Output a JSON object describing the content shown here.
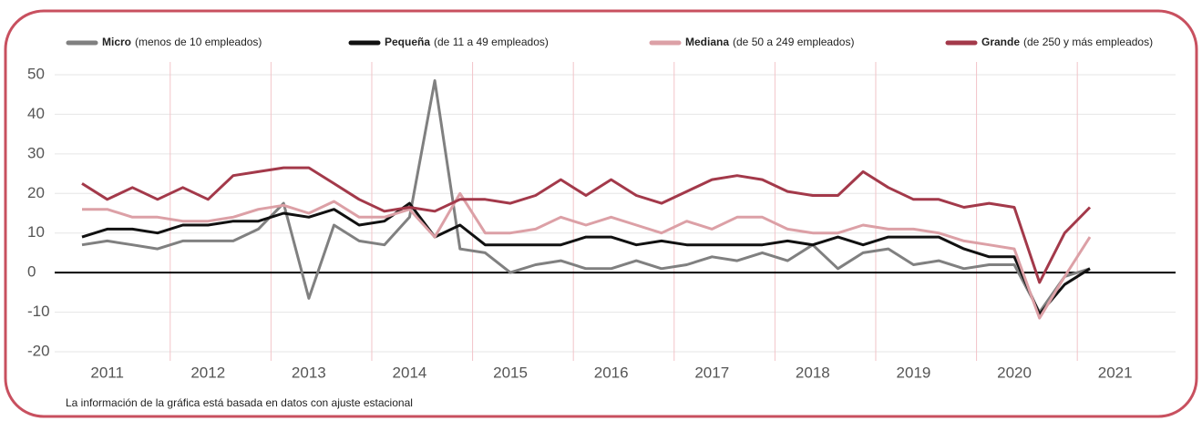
{
  "chart_data": {
    "type": "line",
    "categories": [
      "2011",
      null,
      null,
      null,
      "2012",
      null,
      null,
      null,
      "2013",
      null,
      null,
      null,
      "2014",
      null,
      null,
      null,
      "2015",
      null,
      null,
      null,
      "2016",
      null,
      null,
      null,
      "2017",
      null,
      null,
      null,
      "2018",
      null,
      null,
      null,
      "2019",
      null,
      null,
      null,
      "2020",
      null,
      null,
      null,
      "2021"
    ],
    "series": [
      {
        "name": "Micro",
        "description": "(menos de 10 empleados)",
        "color": "#808080",
        "values": [
          7,
          8,
          7,
          6,
          8,
          8,
          8,
          11,
          17.5,
          -6.5,
          12,
          8,
          7,
          14,
          48.5,
          6,
          5,
          0,
          2,
          3,
          1,
          1,
          3,
          1,
          2,
          4,
          3,
          5,
          3,
          7,
          1,
          5,
          6,
          2,
          3,
          1,
          2,
          2,
          -10,
          -1,
          1
        ]
      },
      {
        "name": "Pequeña",
        "description": "(de 11 a 49 empleados)",
        "color": "#111111",
        "values": [
          9,
          11,
          11,
          10,
          12,
          12,
          13,
          13,
          15,
          14,
          16,
          12,
          13,
          17.5,
          9,
          12,
          7,
          7,
          7,
          7,
          9,
          9,
          7,
          8,
          7,
          7,
          7,
          7,
          8,
          7,
          9,
          7,
          9,
          9,
          9,
          6,
          4,
          4,
          -10.5,
          -3,
          1
        ]
      },
      {
        "name": "Mediana",
        "description": "(de 50 a 249 empleados)",
        "color": "#dca0a6",
        "values": [
          16,
          16,
          14,
          14,
          13,
          13,
          14,
          16,
          17,
          15,
          18,
          14,
          14,
          16,
          9,
          20,
          10,
          10,
          11,
          14,
          12,
          14,
          12,
          10,
          13,
          11,
          14,
          14,
          11,
          10,
          10,
          12,
          11,
          11,
          10,
          8,
          7,
          6,
          -11.5,
          -1,
          9
        ]
      },
      {
        "name": "Grande",
        "description": "(de 250 y más empleados)",
        "color": "#a3394a",
        "values": [
          22.5,
          18.5,
          21.5,
          18.5,
          21.5,
          18.5,
          24.5,
          25.5,
          26.5,
          26.5,
          22.5,
          18.5,
          15.5,
          16.5,
          15.5,
          18.5,
          18.5,
          17.5,
          19.5,
          23.5,
          19.5,
          23.5,
          19.5,
          17.5,
          20.5,
          23.5,
          24.5,
          23.5,
          20.5,
          19.5,
          19.5,
          25.5,
          21.5,
          18.5,
          18.5,
          16.5,
          17.5,
          16.5,
          -2.5,
          10,
          16.5
        ]
      }
    ],
    "ylim": [
      -20,
      50
    ],
    "yticks": [
      -20,
      -10,
      0,
      10,
      20,
      30,
      40,
      50
    ],
    "grid": true,
    "note": "La información de la gráfica está basada en datos con ajuste estacional"
  }
}
